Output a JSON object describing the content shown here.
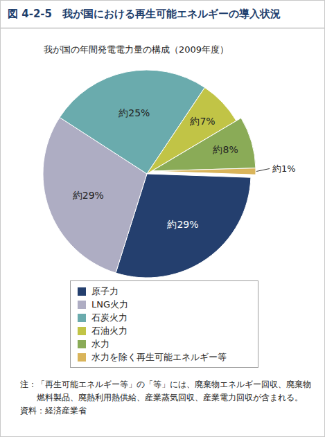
{
  "chart_data": {
    "type": "pie",
    "title": "図 4-2-5　我が国における再生可能エネルギーの導入状況",
    "subtitle": "我が国の年間発電電力量の構成（2009年度）",
    "categories": [
      "原子力",
      "LNG火力",
      "石炭火力",
      "石油火力",
      "水力",
      "水力を除く再生可能エネルギー等"
    ],
    "values": [
      29,
      29,
      25,
      7,
      8,
      1
    ],
    "value_labels": [
      "約29%",
      "約29%",
      "約25%",
      "約7%",
      "約8%",
      "約1%"
    ],
    "colors": [
      "#243f6e",
      "#aeadc3",
      "#6aabad",
      "#c1c446",
      "#8aab57",
      "#d9b45a"
    ],
    "data_labels": true,
    "legend": "bottom",
    "note": "注：「再生可能エネルギー等」の「等」には、廃棄物エネルギー回収、廃棄物燃料製品、廃熱利用熱供給、産業蒸気回収、産業電力回収が含まれる。",
    "source": "資料：経済産業省"
  }
}
